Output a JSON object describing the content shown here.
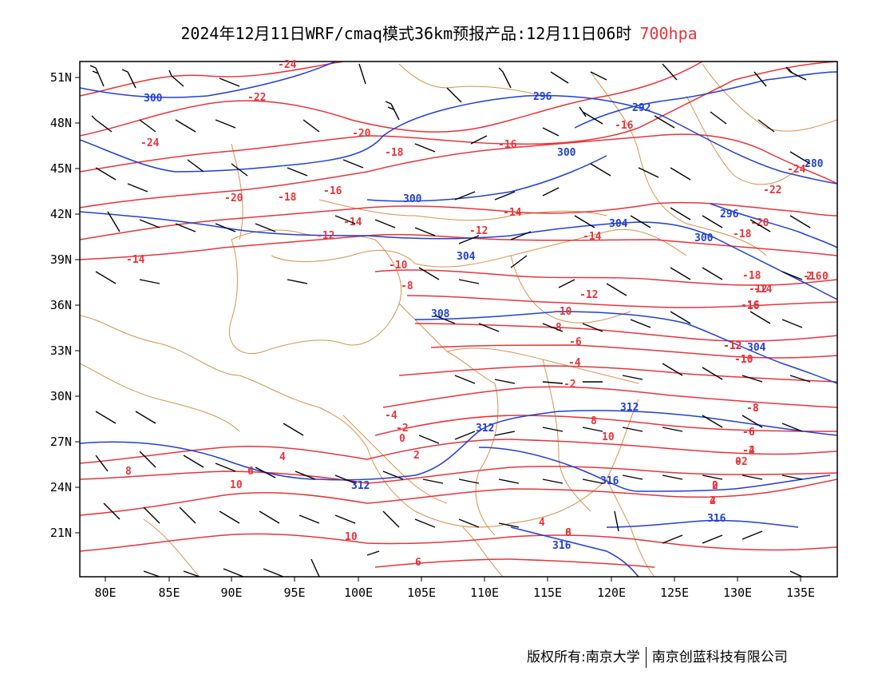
{
  "title": {
    "main": "2024年12月11日WRF/cmaq模式36km预报产品:12月11日06时",
    "level": "700hpa"
  },
  "axes": {
    "lon_ticks": [
      "80E",
      "85E",
      "90E",
      "95E",
      "100E",
      "105E",
      "110E",
      "115E",
      "120E",
      "125E",
      "130E",
      "135E"
    ],
    "lat_ticks": [
      "51N",
      "48N",
      "45N",
      "42N",
      "39N",
      "36N",
      "33N",
      "30N",
      "27N",
      "24N",
      "21N"
    ]
  },
  "colors": {
    "temperature": "#e8343a",
    "height": "#1f3fd6",
    "border": "#d9914a",
    "wind": "#000000"
  },
  "temperature_labels": [
    "-24",
    "-24",
    "-22",
    "-20",
    "-18",
    "-18",
    "-16",
    "-16",
    "-16",
    "-20",
    "-14",
    "-14",
    "-12",
    "-12",
    "-14",
    "-14",
    "-10",
    "-8",
    "-10",
    "-12",
    "-8",
    "-6",
    "-4",
    "-2",
    "-4",
    "-2",
    "0",
    "2",
    "4",
    "6",
    "8",
    "10",
    "10",
    "-12",
    "-16",
    "-18",
    "-20",
    "-22",
    "-24",
    "-18",
    "-16",
    "-12",
    "-10",
    "-8",
    "-6",
    "-2",
    "0",
    "2",
    "4",
    "6",
    "8",
    "10",
    "0",
    "2",
    "-14",
    "-16",
    "-12",
    "-10",
    "-8",
    "-6",
    "-4",
    "-2",
    "0",
    "2",
    "4",
    "6",
    "8",
    "10",
    "10"
  ],
  "height_labels": [
    "300",
    "296",
    "292",
    "300",
    "300",
    "304",
    "304",
    "300",
    "296",
    "280",
    "308",
    "304",
    "312",
    "312",
    "312",
    "316",
    "316",
    "316"
  ],
  "footer": {
    "rights": "版权所有:南京大学",
    "company": "南京创蓝科技有限公司"
  }
}
